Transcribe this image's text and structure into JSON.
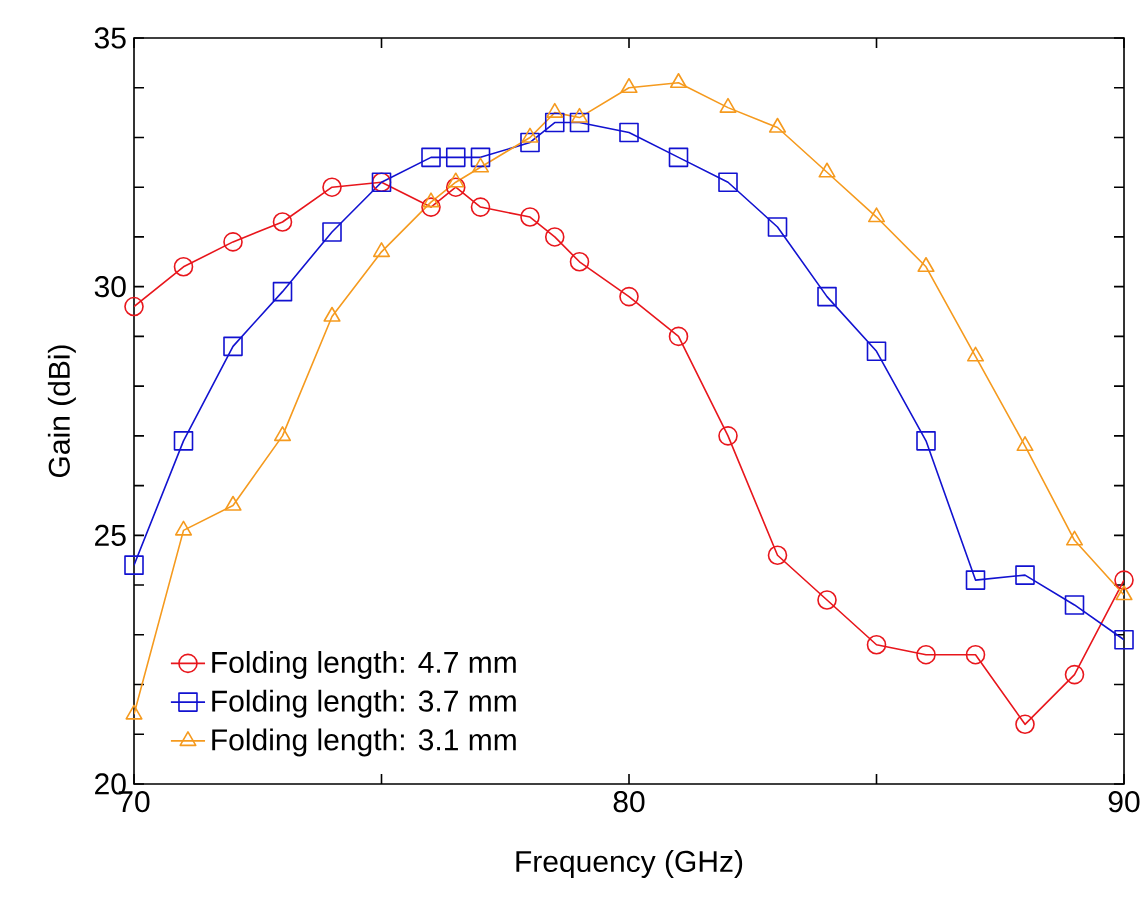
{
  "chart_data": {
    "type": "line",
    "xlabel": "Frequency (GHz)",
    "ylabel": "Gain (dBi)",
    "x": [
      70,
      71,
      72,
      73,
      74,
      75,
      76,
      76.5,
      77,
      78,
      78.5,
      79,
      80,
      81,
      82,
      83,
      84,
      85,
      86,
      87,
      88,
      89,
      90
    ],
    "series": [
      {
        "name": "Folding length: 4.7 mm",
        "color": "#e8161c",
        "marker": "circle",
        "values": [
          29.6,
          30.4,
          30.9,
          31.3,
          32.0,
          32.1,
          31.6,
          32.0,
          31.6,
          31.4,
          31.0,
          30.5,
          29.8,
          29.0,
          27.0,
          24.6,
          23.7,
          22.8,
          22.6,
          22.6,
          21.2,
          22.2,
          24.1
        ]
      },
      {
        "name": "Folding length: 3.7 mm",
        "color": "#1212d0",
        "marker": "square",
        "values": [
          24.4,
          26.9,
          28.8,
          29.9,
          31.1,
          32.1,
          32.6,
          32.6,
          32.6,
          32.9,
          33.3,
          33.3,
          33.1,
          32.6,
          32.1,
          31.2,
          29.8,
          28.7,
          26.9,
          24.1,
          24.2,
          23.6,
          22.9
        ]
      },
      {
        "name": "Folding length: 3.1 mm",
        "color": "#f59a1e",
        "marker": "triangle",
        "values": [
          21.4,
          25.1,
          25.6,
          27.0,
          29.4,
          30.7,
          31.7,
          32.1,
          32.4,
          33.0,
          33.5,
          33.4,
          34.0,
          34.1,
          33.6,
          33.2,
          32.3,
          31.4,
          30.4,
          28.6,
          26.8,
          24.9,
          23.8
        ]
      }
    ],
    "xlim": [
      70,
      90
    ],
    "ylim": [
      20,
      35
    ],
    "xticks": [
      70,
      {
        "value": 75,
        "label": null
      },
      80,
      {
        "value": 85,
        "label": null
      },
      90
    ],
    "yticks": [
      20,
      {
        "value": 21,
        "label": null
      },
      {
        "value": 22,
        "label": null
      },
      {
        "value": 23,
        "label": null
      },
      {
        "value": 24,
        "label": null
      },
      25,
      {
        "value": 26,
        "label": null
      },
      {
        "value": 27,
        "label": null
      },
      {
        "value": 28,
        "label": null
      },
      {
        "value": 29,
        "label": null
      },
      30,
      {
        "value": 31,
        "label": null
      },
      {
        "value": 32,
        "label": null
      },
      {
        "value": 33,
        "label": null
      },
      {
        "value": 34,
        "label": null
      },
      35
    ],
    "grid": false,
    "legend": "bottom left",
    "line_style": "solid"
  }
}
